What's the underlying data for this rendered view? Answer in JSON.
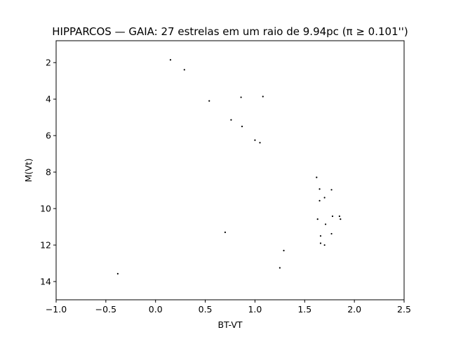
{
  "chart_data": {
    "type": "scatter",
    "title": "HIPPARCOS — GAIA: 27 estrelas em um raio de 9.94pc (π ≥ 0.101'')",
    "xlabel": "BT-VT",
    "ylabel": "M(Vt)",
    "xlim": [
      -1.0,
      2.5
    ],
    "ylim": [
      15.0,
      0.8
    ],
    "y_inverted": true,
    "grid": false,
    "marker_color": "#000000",
    "x_ticks": [
      -1.0,
      -0.5,
      0.0,
      0.5,
      1.0,
      1.5,
      2.0,
      2.5
    ],
    "x_tick_labels": [
      "−1.0",
      "−0.5",
      "0.0",
      "0.5",
      "1.0",
      "1.5",
      "2.0",
      "2.5"
    ],
    "y_ticks": [
      2,
      4,
      6,
      8,
      10,
      12,
      14
    ],
    "y_tick_labels": [
      "2",
      "4",
      "6",
      "8",
      "10",
      "12",
      "14"
    ],
    "points": [
      {
        "x": 0.15,
        "y": 1.85
      },
      {
        "x": 0.29,
        "y": 2.39
      },
      {
        "x": 0.54,
        "y": 4.1
      },
      {
        "x": 0.86,
        "y": 3.9
      },
      {
        "x": 1.08,
        "y": 3.86
      },
      {
        "x": 0.76,
        "y": 5.14
      },
      {
        "x": 0.87,
        "y": 5.5
      },
      {
        "x": 1.0,
        "y": 6.25
      },
      {
        "x": 1.05,
        "y": 6.39
      },
      {
        "x": 1.62,
        "y": 8.29
      },
      {
        "x": 1.65,
        "y": 8.93
      },
      {
        "x": 1.77,
        "y": 8.97
      },
      {
        "x": 1.7,
        "y": 9.4
      },
      {
        "x": 1.65,
        "y": 9.57
      },
      {
        "x": 1.78,
        "y": 10.42
      },
      {
        "x": 1.85,
        "y": 10.42
      },
      {
        "x": 1.86,
        "y": 10.58
      },
      {
        "x": 1.63,
        "y": 10.58
      },
      {
        "x": 1.71,
        "y": 10.86
      },
      {
        "x": 0.7,
        "y": 11.3
      },
      {
        "x": 1.77,
        "y": 11.38
      },
      {
        "x": 1.66,
        "y": 11.5
      },
      {
        "x": 1.66,
        "y": 11.9
      },
      {
        "x": 1.7,
        "y": 12.0
      },
      {
        "x": 1.29,
        "y": 12.3
      },
      {
        "x": 1.25,
        "y": 13.25
      },
      {
        "x": -0.38,
        "y": 13.57
      }
    ]
  }
}
